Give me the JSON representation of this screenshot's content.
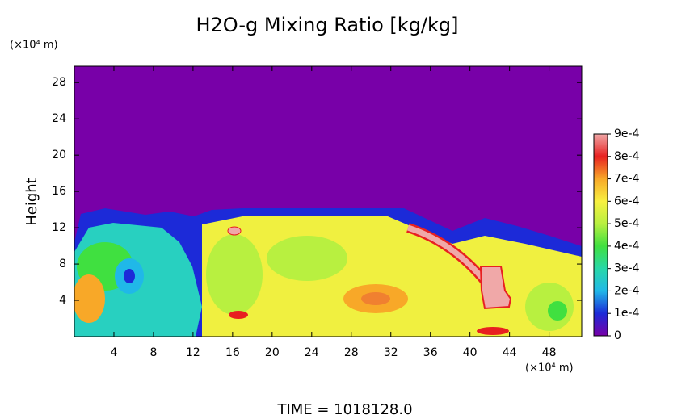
{
  "chart_data": {
    "type": "contour",
    "title": "H2O-g Mixing Ratio [kg/kg]",
    "y_unit": "(×10⁴ m)",
    "ylabel": "Height",
    "x_unit": "(×10⁴ m)",
    "xlim": [
      0,
      51.3
    ],
    "xticks": [
      4,
      8,
      12,
      16,
      20,
      24,
      28,
      32,
      36,
      40,
      44,
      48
    ],
    "ylim": [
      0,
      29.8
    ],
    "yticks": [
      4,
      8,
      12,
      16,
      20,
      24,
      28
    ],
    "colorbar": {
      "lim": [
        0,
        0.0009
      ],
      "ticks": [
        0,
        {
          "value": 0.0001,
          "label": "1e-4"
        },
        {
          "value": 0.0002,
          "label": "2e-4"
        },
        {
          "value": 0.0003,
          "label": "3e-4"
        },
        {
          "value": 0.0004,
          "label": "4e-4"
        },
        {
          "value": 0.0005,
          "label": "5e-4"
        },
        {
          "value": 0.0006,
          "label": "6e-4"
        },
        {
          "value": 0.0007,
          "label": "7e-4"
        },
        {
          "value": 0.0008,
          "label": "8e-4"
        },
        {
          "value": 0.0009,
          "label": "9e-4"
        }
      ],
      "colors": [
        "#7800a8",
        "#1c2ad8",
        "#20b8e8",
        "#28d8a8",
        "#40e040",
        "#b8f040",
        "#f8f040",
        "#f8a828",
        "#e82020",
        "#f0a8a8"
      ]
    },
    "footer": "TIME = 1018128.0"
  }
}
